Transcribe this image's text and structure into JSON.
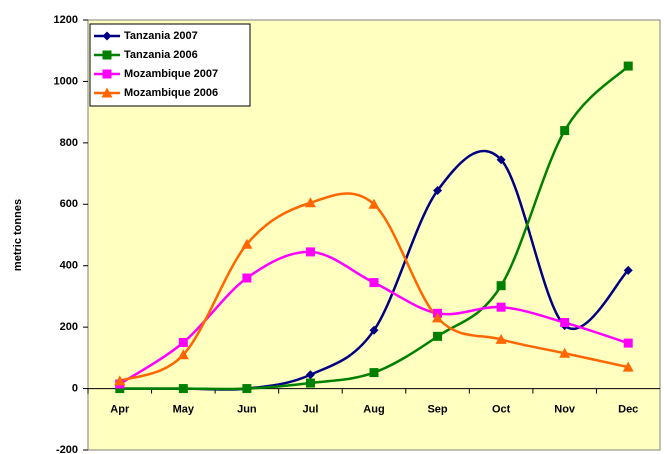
{
  "chart_data": {
    "type": "line",
    "y_label": "metric tonnes",
    "categories": [
      "Apr",
      "May",
      "Jun",
      "Jul",
      "Aug",
      "Sep",
      "Oct",
      "Nov",
      "Dec"
    ],
    "series": [
      {
        "name": "Tanzania 2007",
        "color": "#000080",
        "marker": "diamond",
        "values": [
          0,
          0,
          0,
          45,
          190,
          645,
          745,
          205,
          385
        ]
      },
      {
        "name": "Tanzania 2006",
        "color": "#008000",
        "marker": "square",
        "values": [
          0,
          0,
          0,
          18,
          52,
          170,
          335,
          840,
          1050
        ]
      },
      {
        "name": "Mozambique 2007",
        "color": "#ff00ff",
        "marker": "square",
        "values": [
          15,
          150,
          360,
          445,
          345,
          245,
          265,
          215,
          148
        ]
      },
      {
        "name": "Mozambique 2006",
        "color": "#ff6600",
        "marker": "triangle",
        "values": [
          25,
          110,
          470,
          605,
          600,
          230,
          160,
          115,
          70
        ]
      }
    ],
    "ylim": [
      -200,
      1200
    ],
    "yticks": [
      -200,
      0,
      200,
      400,
      600,
      800,
      1000,
      1200
    ],
    "plot_background": "#ffffc0",
    "legend": "upper left"
  }
}
